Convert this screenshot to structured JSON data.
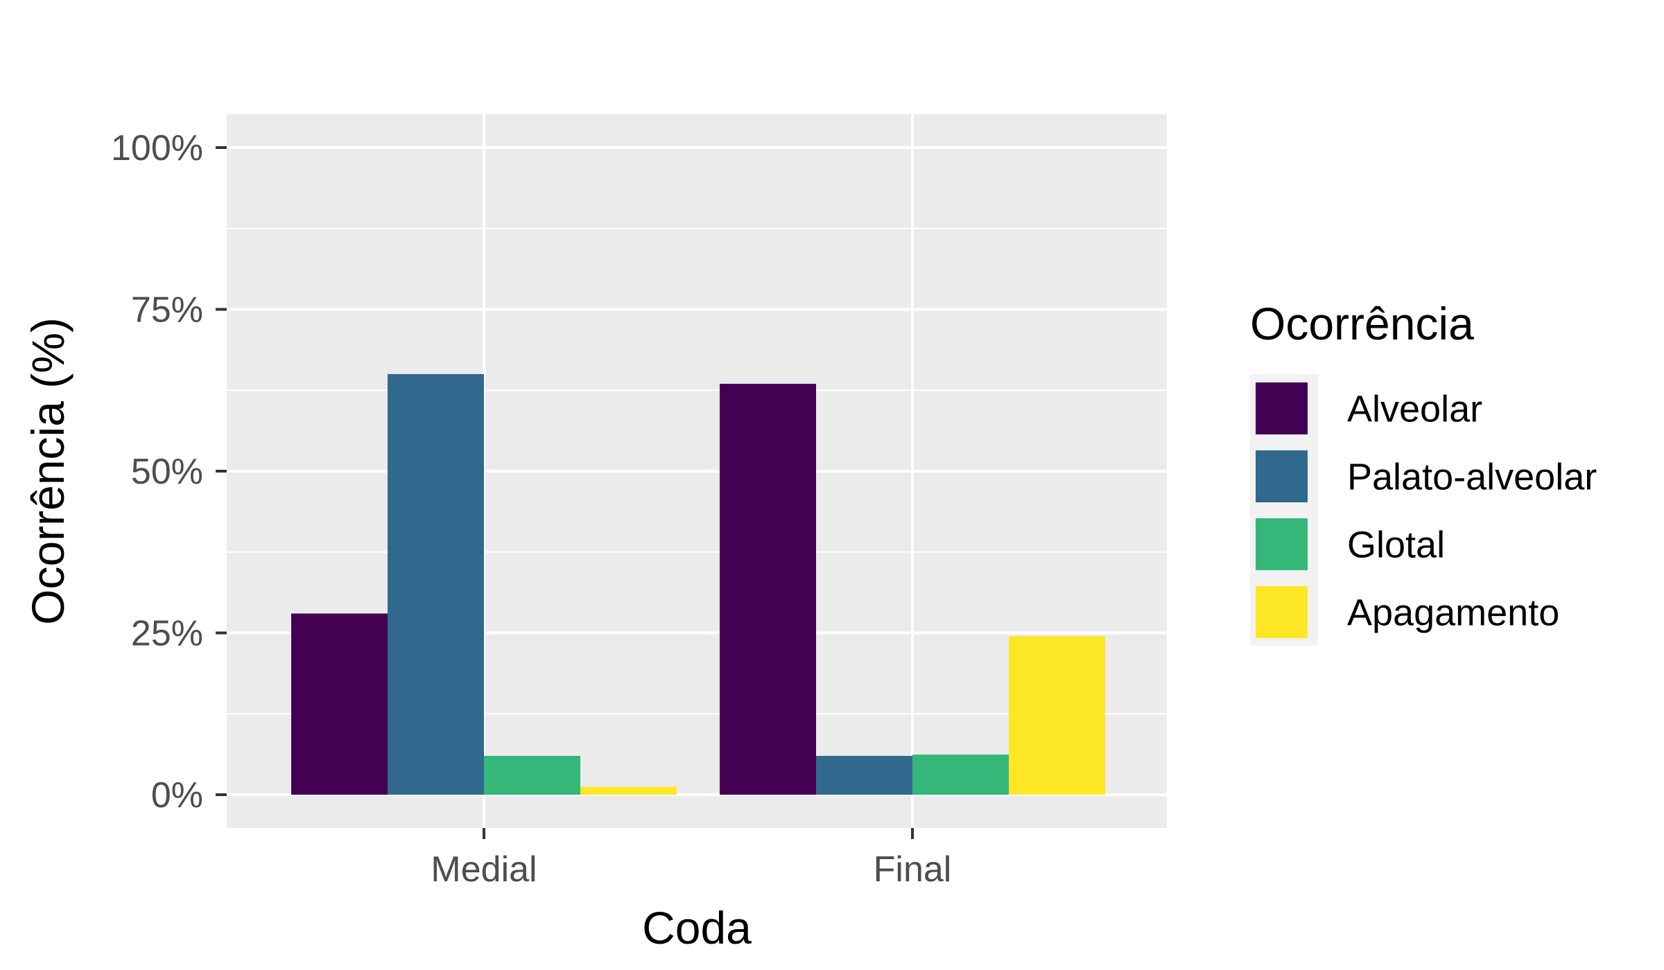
{
  "chart_data": {
    "type": "bar",
    "categories": [
      "Medial",
      "Final"
    ],
    "series": [
      {
        "name": "Alveolar",
        "color": "#440154",
        "values": [
          28,
          63.5
        ]
      },
      {
        "name": "Palato-alveolar",
        "color": "#31688E",
        "values": [
          65,
          6
        ]
      },
      {
        "name": "Glotal",
        "color": "#35B779",
        "values": [
          6,
          6.2
        ]
      },
      {
        "name": "Apagamento",
        "color": "#FDE725",
        "values": [
          1.2,
          24.5
        ]
      }
    ],
    "xlabel": "Coda",
    "ylabel": "Ocorrência (%)",
    "ylim": [
      0,
      100
    ],
    "yticks": [
      0,
      25,
      50,
      75,
      100
    ],
    "ytick_labels": [
      "0%",
      "25%",
      "50%",
      "75%",
      "100%"
    ],
    "grid": true,
    "legend": {
      "title": "Ocorrência",
      "position": "right"
    },
    "panel_background": "#EBEBEB"
  }
}
